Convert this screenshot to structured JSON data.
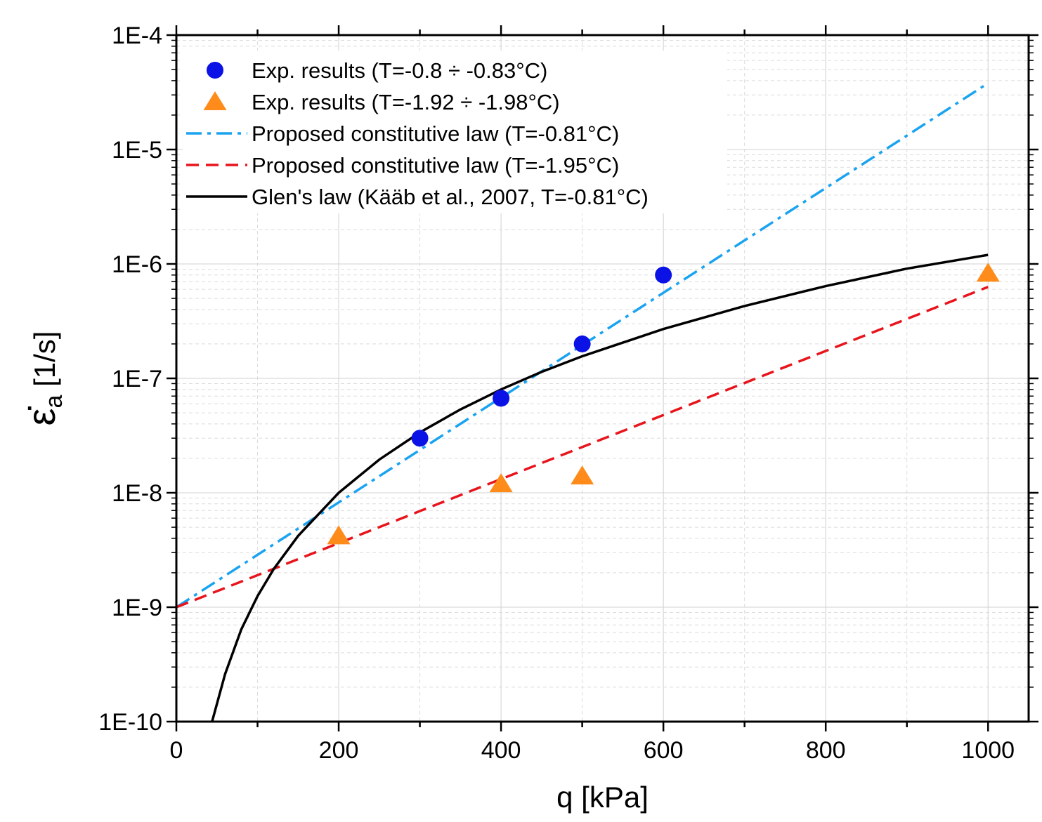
{
  "chart_data": {
    "type": "scatter",
    "xlabel": "q [kPa]",
    "ylabel": {
      "symbol": "ε̇",
      "subscript": "a",
      "unit": " [1/s]"
    },
    "xlim": [
      0,
      1050
    ],
    "ylim": [
      1e-10,
      0.0001
    ],
    "yscale": "log",
    "grid": true,
    "legend_position": "top-left",
    "x_ticks": [
      0,
      200,
      400,
      600,
      800,
      1000
    ],
    "x_tick_labels": [
      "0",
      "200",
      "400",
      "600",
      "800",
      "1000"
    ],
    "y_ticks": [
      1e-10,
      1e-09,
      1e-08,
      1e-07,
      1e-06,
      1e-05,
      0.0001
    ],
    "y_tick_labels": [
      "1E-10",
      "1E-9",
      "1E-8",
      "1E-7",
      "1E-6",
      "1E-5",
      "1E-4"
    ],
    "series": [
      {
        "name": "Exp. results (T=-0.8 ÷ -0.83°C)",
        "kind": "scatter",
        "marker": "circle",
        "color": "#0a12e6",
        "x": [
          300,
          400,
          500,
          600
        ],
        "y": [
          3e-08,
          6.7e-08,
          2e-07,
          8e-07
        ]
      },
      {
        "name": "Exp. results (T=-1.92 ÷ -1.98°C)",
        "kind": "scatter",
        "marker": "triangle",
        "color": "#ff8c1a",
        "x": [
          200,
          400,
          500,
          1000
        ],
        "y": [
          4.2e-09,
          1.2e-08,
          1.4e-08,
          8.3e-07
        ]
      },
      {
        "name": "Proposed constitutive law (T=-0.81°C)",
        "kind": "line",
        "dash": "dashdot",
        "color": "#1aa3f0",
        "x": [
          0,
          1000
        ],
        "y": [
          1e-09,
          3.8e-05
        ]
      },
      {
        "name": "Proposed constitutive law (T=-1.95°C)",
        "kind": "line",
        "dash": "dashed",
        "color": "#e8141c",
        "x": [
          0,
          1000
        ],
        "y": [
          1e-09,
          6.3e-07
        ]
      },
      {
        "name": "Glen's law (Kääb et al., 2007, T=-0.81°C)",
        "kind": "line",
        "dash": "solid",
        "color": "#000000",
        "x": [
          44,
          60,
          80,
          100,
          120,
          150,
          200,
          250,
          300,
          350,
          400,
          450,
          500,
          600,
          700,
          800,
          900,
          1000
        ],
        "y": [
          1e-10,
          2.6e-10,
          6.4e-10,
          1.25e-09,
          2.16e-09,
          4.2e-09,
          1e-08,
          1.95e-08,
          3.37e-08,
          5.35e-08,
          8e-08,
          1.14e-07,
          1.56e-07,
          2.7e-07,
          4.29e-07,
          6.4e-07,
          9.1e-07,
          1.2e-06
        ]
      }
    ]
  }
}
